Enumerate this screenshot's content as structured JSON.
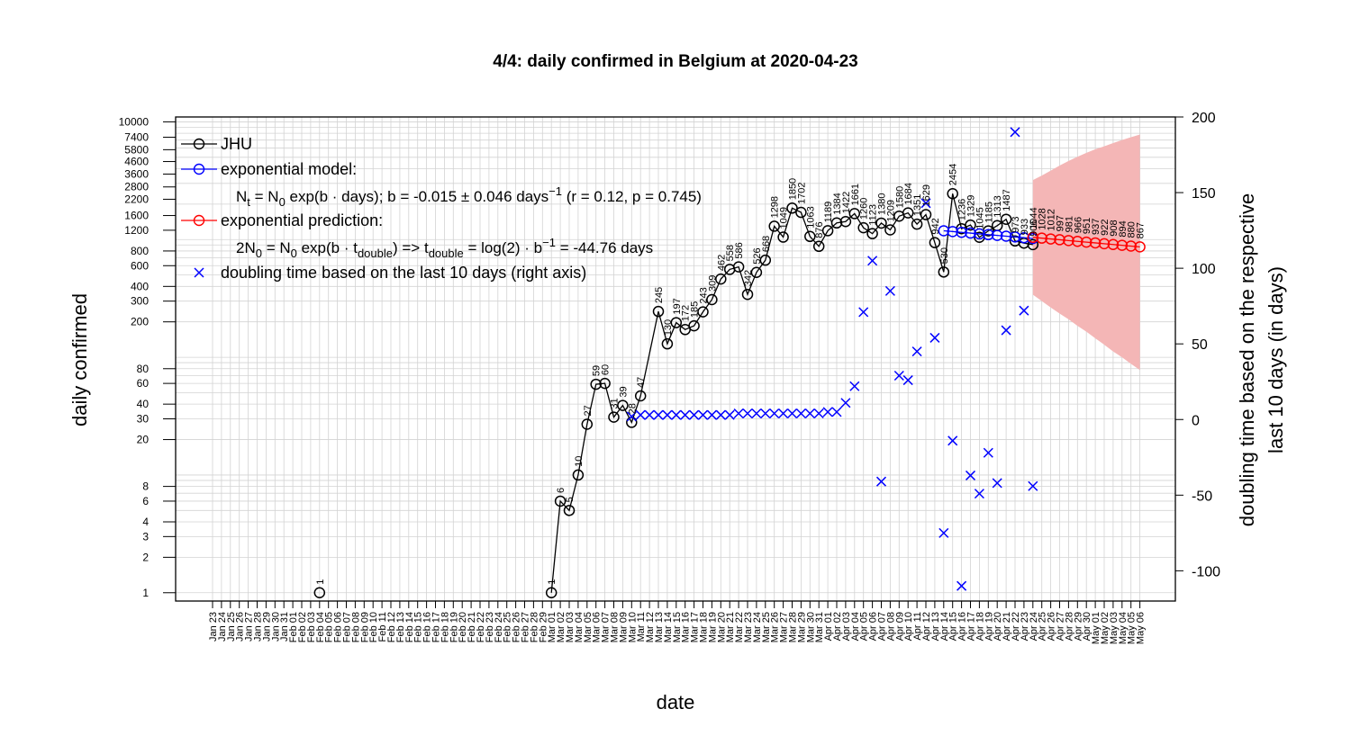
{
  "chart_data": {
    "type": "line",
    "title": "4/4: daily confirmed in Belgium at 2020-04-23",
    "xlabel": "date",
    "ylabel": "daily confirmed",
    "y2label_line1": "doubling time based on the respective",
    "y2label_line2": "last 10 days (in days)",
    "y_scale": "log",
    "ylim": [
      0.85,
      11000
    ],
    "y2lim": [
      -120,
      200
    ],
    "grid": true,
    "legend_position": "top-left",
    "colors": {
      "jhu": "#000000",
      "model": "#0000ff",
      "prediction": "#ff0000",
      "band": "#f4b6b6",
      "grid": "#d3d3d3"
    },
    "y_ticks": [
      1,
      2,
      3,
      4,
      6,
      8,
      20,
      30,
      40,
      60,
      80,
      200,
      300,
      400,
      600,
      800,
      1200,
      1600,
      2200,
      2800,
      3600,
      4600,
      5800,
      7400,
      10000
    ],
    "y_tick_labels": [
      "1",
      "2",
      "3",
      "4",
      "6",
      "8",
      "20",
      "30",
      "40",
      "60",
      "80",
      "200",
      "300",
      "400",
      "600",
      "800",
      "1200",
      "1600",
      "2200",
      "2800",
      "3600",
      "4600",
      "5800",
      "7400",
      "10000"
    ],
    "y2_ticks": [
      -100,
      -50,
      0,
      50,
      100,
      150,
      200
    ],
    "y2_tick_labels": [
      "-100",
      "-50",
      "0",
      "50",
      "100",
      "150",
      "200"
    ],
    "x_dates": [
      "Jan 23",
      "Jan 24",
      "Jan 25",
      "Jan 26",
      "Jan 27",
      "Jan 28",
      "Jan 29",
      "Jan 30",
      "Jan 31",
      "Feb 01",
      "Feb 02",
      "Feb 03",
      "Feb 04",
      "Feb 05",
      "Feb 06",
      "Feb 07",
      "Feb 08",
      "Feb 09",
      "Feb 10",
      "Feb 11",
      "Feb 12",
      "Feb 13",
      "Feb 14",
      "Feb 15",
      "Feb 16",
      "Feb 17",
      "Feb 18",
      "Feb 19",
      "Feb 20",
      "Feb 21",
      "Feb 22",
      "Feb 23",
      "Feb 24",
      "Feb 25",
      "Feb 26",
      "Feb 27",
      "Feb 28",
      "Feb 29",
      "Mar 01",
      "Mar 02",
      "Mar 03",
      "Mar 04",
      "Mar 05",
      "Mar 06",
      "Mar 07",
      "Mar 08",
      "Mar 09",
      "Mar 10",
      "Mar 11",
      "Mar 12",
      "Mar 13",
      "Mar 14",
      "Mar 15",
      "Mar 16",
      "Mar 17",
      "Mar 18",
      "Mar 19",
      "Mar 20",
      "Mar 21",
      "Mar 22",
      "Mar 23",
      "Mar 24",
      "Mar 25",
      "Mar 26",
      "Mar 27",
      "Mar 28",
      "Mar 29",
      "Mar 30",
      "Mar 31",
      "Apr 01",
      "Apr 02",
      "Apr 03",
      "Apr 04",
      "Apr 05",
      "Apr 06",
      "Apr 07",
      "Apr 08",
      "Apr 09",
      "Apr 10",
      "Apr 11",
      "Apr 12",
      "Apr 13",
      "Apr 14",
      "Apr 15",
      "Apr 16",
      "Apr 17",
      "Apr 18",
      "Apr 19",
      "Apr 20",
      "Apr 21",
      "Apr 22",
      "Apr 23",
      "Apr 24",
      "Apr 25",
      "Apr 26",
      "Apr 27",
      "Apr 28",
      "Apr 29",
      "Apr 30",
      "May 01",
      "May 02",
      "May 03",
      "May 04",
      "May 05",
      "May 06"
    ],
    "series": [
      {
        "name": "JHU",
        "points": [
          [
            "Feb 04",
            1
          ],
          [
            "Mar 01",
            1
          ],
          [
            "Mar 02",
            6
          ],
          [
            "Mar 03",
            5
          ],
          [
            "Mar 04",
            10
          ],
          [
            "Mar 05",
            27
          ],
          [
            "Mar 06",
            59
          ],
          [
            "Mar 07",
            60
          ],
          [
            "Mar 08",
            31
          ],
          [
            "Mar 09",
            39
          ],
          [
            "Mar 10",
            28
          ],
          [
            "Mar 11",
            47
          ],
          [
            "Mar 13",
            245
          ],
          [
            "Mar 14",
            130
          ],
          [
            "Mar 15",
            197
          ],
          [
            "Mar 16",
            172
          ],
          [
            "Mar 17",
            185
          ],
          [
            "Mar 18",
            243
          ],
          [
            "Mar 19",
            309
          ],
          [
            "Mar 20",
            462
          ],
          [
            "Mar 21",
            558
          ],
          [
            "Mar 22",
            586
          ],
          [
            "Mar 23",
            342
          ],
          [
            "Mar 24",
            526
          ],
          [
            "Mar 25",
            668
          ],
          [
            "Mar 26",
            1298
          ],
          [
            "Mar 27",
            1049
          ],
          [
            "Mar 28",
            1850
          ],
          [
            "Mar 29",
            1702
          ],
          [
            "Mar 30",
            1063
          ],
          [
            "Mar 31",
            876
          ],
          [
            "Apr 01",
            1189
          ],
          [
            "Apr 02",
            1384
          ],
          [
            "Apr 03",
            1422
          ],
          [
            "Apr 04",
            1661
          ],
          [
            "Apr 05",
            1260
          ],
          [
            "Apr 06",
            1123
          ],
          [
            "Apr 07",
            1380
          ],
          [
            "Apr 08",
            1209
          ],
          [
            "Apr 09",
            1580
          ],
          [
            "Apr 10",
            1684
          ],
          [
            "Apr 11",
            1351
          ],
          [
            "Apr 12",
            1629
          ],
          [
            "Apr 13",
            942
          ],
          [
            "Apr 14",
            530
          ],
          [
            "Apr 15",
            2454
          ],
          [
            "Apr 16",
            1236
          ],
          [
            "Apr 17",
            1329
          ],
          [
            "Apr 18",
            1045
          ],
          [
            "Apr 19",
            1185
          ],
          [
            "Apr 20",
            1313
          ],
          [
            "Apr 21",
            1487
          ],
          [
            "Apr 22",
            973
          ],
          [
            "Apr 23",
            933
          ],
          [
            "Apr 24",
            906
          ]
        ],
        "point_labels": [
          "1",
          "1",
          "6",
          "5",
          "10",
          "27",
          "59",
          "60",
          "31",
          "39",
          "28",
          "47",
          "245",
          "130",
          "197",
          "172",
          "185",
          "243",
          "309",
          "462",
          "558",
          "586",
          "342",
          "526",
          "668",
          "1298",
          "1049",
          "1850",
          "1702",
          "1063",
          "876",
          "1189",
          "1384",
          "1422",
          "1661",
          "1260",
          "1123",
          "1380",
          "1209",
          "1580",
          "1684",
          "1351",
          "1629",
          "942",
          "530",
          "2454",
          "1236",
          "1329",
          "1045",
          "1185",
          "1313",
          "1487",
          "973",
          "933",
          "906"
        ]
      },
      {
        "name": "exponential model:",
        "formula": "N<sub>t</sub> = N<sub>0</sub> exp(b · days); b = -0.015 ± 0.046 days<sup>−1</sup>  (r = 0.12, p = 0.745)",
        "points": [
          [
            "Apr 14",
            1188
          ],
          [
            "Apr 15",
            1170
          ],
          [
            "Apr 16",
            1152
          ],
          [
            "Apr 17",
            1135
          ],
          [
            "Apr 18",
            1118
          ],
          [
            "Apr 19",
            1101
          ],
          [
            "Apr 20",
            1085
          ],
          [
            "Apr 21",
            1069
          ],
          [
            "Apr 22",
            1053
          ],
          [
            "Apr 23",
            1037
          ],
          [
            "Apr 24",
            1021
          ]
        ]
      },
      {
        "name": "exponential prediction:",
        "formula": "2N<sub>0</sub> = N<sub>0</sub> exp(b · t<sub>double</sub>) => t<sub>double</sub> = log(2) · b<sup>−1</sup> = -44.76 days",
        "points": [
          [
            "Apr 24",
            1044
          ],
          [
            "Apr 25",
            1028
          ],
          [
            "Apr 26",
            1012
          ],
          [
            "Apr 27",
            997
          ],
          [
            "Apr 28",
            981
          ],
          [
            "Apr 29",
            966
          ],
          [
            "Apr 30",
            951
          ],
          [
            "May 01",
            937
          ],
          [
            "May 02",
            922
          ],
          [
            "May 03",
            908
          ],
          [
            "May 04",
            894
          ],
          [
            "May 05",
            880
          ],
          [
            "May 06",
            867
          ]
        ],
        "point_labels": [
          "1044",
          "1028",
          "1012",
          "997",
          "981",
          "966",
          "951",
          "937",
          "922",
          "908",
          "894",
          "880",
          "867"
        ],
        "band_upper": [
          3200,
          3500,
          3850,
          4250,
          4650,
          5050,
          5450,
          5850,
          6200,
          6600,
          7000,
          7400,
          7800
        ],
        "band_lower": [
          340,
          300,
          265,
          235,
          210,
          185,
          165,
          145,
          128,
          112,
          100,
          88,
          78
        ]
      },
      {
        "name": "doubling time based on the last  10  days (right axis)",
        "axis": "right",
        "points": [
          [
            "Mar 10",
            2
          ],
          [
            "Mar 11",
            3
          ],
          [
            "Mar 12",
            3
          ],
          [
            "Mar 13",
            3
          ],
          [
            "Mar 14",
            3
          ],
          [
            "Mar 15",
            3
          ],
          [
            "Mar 16",
            3
          ],
          [
            "Mar 17",
            3
          ],
          [
            "Mar 18",
            3
          ],
          [
            "Mar 19",
            3
          ],
          [
            "Mar 20",
            3
          ],
          [
            "Mar 21",
            3
          ],
          [
            "Mar 22",
            4
          ],
          [
            "Mar 23",
            4
          ],
          [
            "Mar 24",
            4
          ],
          [
            "Mar 25",
            4
          ],
          [
            "Mar 26",
            4
          ],
          [
            "Mar 27",
            4
          ],
          [
            "Mar 28",
            4
          ],
          [
            "Mar 29",
            4
          ],
          [
            "Mar 30",
            4
          ],
          [
            "Mar 31",
            4
          ],
          [
            "Apr 01",
            5
          ],
          [
            "Apr 02",
            5
          ],
          [
            "Apr 03",
            11
          ],
          [
            "Apr 04",
            22
          ],
          [
            "Apr 05",
            71
          ],
          [
            "Apr 06",
            105
          ],
          [
            "Apr 07",
            -41
          ],
          [
            "Apr 08",
            85
          ],
          [
            "Apr 09",
            29
          ],
          [
            "Apr 10",
            26
          ],
          [
            "Apr 11",
            45
          ],
          [
            "Apr 12",
            143
          ],
          [
            "Apr 13",
            54
          ],
          [
            "Apr 14",
            -75
          ],
          [
            "Apr 15",
            -14
          ],
          [
            "Apr 16",
            -110
          ],
          [
            "Apr 17",
            -37
          ],
          [
            "Apr 18",
            -49
          ],
          [
            "Apr 19",
            -22
          ],
          [
            "Apr 20",
            -42
          ],
          [
            "Apr 21",
            59
          ],
          [
            "Apr 22",
            190
          ],
          [
            "Apr 23",
            72
          ],
          [
            "Apr 24",
            -44
          ]
        ]
      }
    ]
  }
}
